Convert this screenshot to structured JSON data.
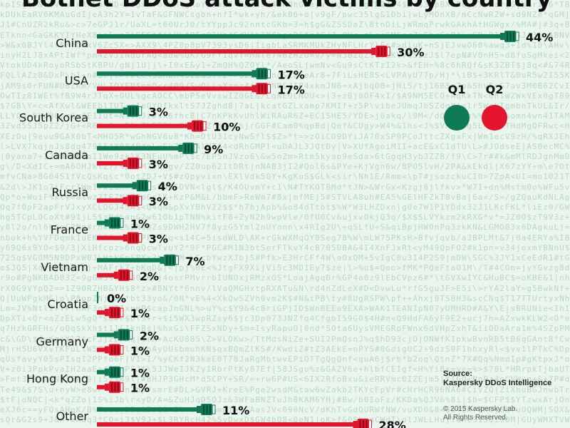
{
  "title": "Botnet DDoS attack victims by country",
  "legend": [
    {
      "label": "Q1",
      "color": "#0e7a56"
    },
    {
      "label": "Q2",
      "color": "#e3142b"
    }
  ],
  "source": {
    "heading": "Source:",
    "name": "Kaspersky DDoS Intelligence",
    "copyright": "© 2015 Kaspersky Lab.",
    "rights": "All Rights Reserved."
  },
  "chart_data": {
    "type": "bar",
    "orientation": "horizontal",
    "title": "Botnet DDoS attack victims by country",
    "unit": "%",
    "categories": [
      "China",
      "USA",
      "South Korea",
      "Canada",
      "Russia",
      "France",
      "Vietnam",
      "Croatia",
      "Germany",
      "Hong Kong",
      "Other"
    ],
    "series": [
      {
        "name": "Q1",
        "color": "#0e7a56",
        "values": [
          44,
          17,
          3,
          9,
          4,
          1,
          7,
          0,
          2,
          1,
          11
        ]
      },
      {
        "name": "Q2",
        "color": "#e3142b",
        "values": [
          30,
          17,
          10,
          3,
          3,
          3,
          2,
          1,
          1,
          1,
          28
        ]
      }
    ],
    "xlim": [
      0,
      44
    ],
    "grid": false,
    "legend_position": "right"
  }
}
